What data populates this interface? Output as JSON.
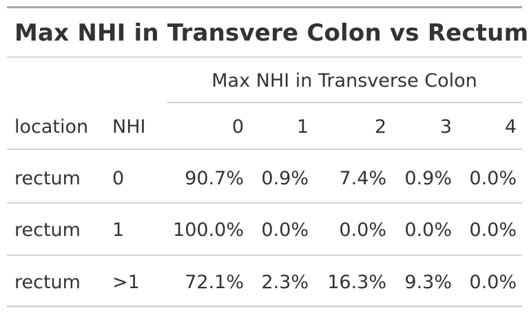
{
  "table": {
    "title": "Max NHI in Transvere Colon vs Rectum",
    "spanner_label": "Max NHI in Transverse Colon",
    "columns": [
      "location",
      "NHI",
      "0",
      "1",
      "2",
      "3",
      "4"
    ],
    "rows": [
      {
        "location": "rectum",
        "nhi": "0",
        "values": [
          "90.7%",
          "0.9%",
          "7.4%",
          "0.9%",
          "0.0%"
        ]
      },
      {
        "location": "rectum",
        "nhi": "1",
        "values": [
          "100.0%",
          "0.0%",
          "0.0%",
          "0.0%",
          "0.0%"
        ]
      },
      {
        "location": "rectum",
        "nhi": ">1",
        "values": [
          "72.1%",
          "2.3%",
          "16.3%",
          "9.3%",
          "0.0%"
        ]
      }
    ]
  }
}
